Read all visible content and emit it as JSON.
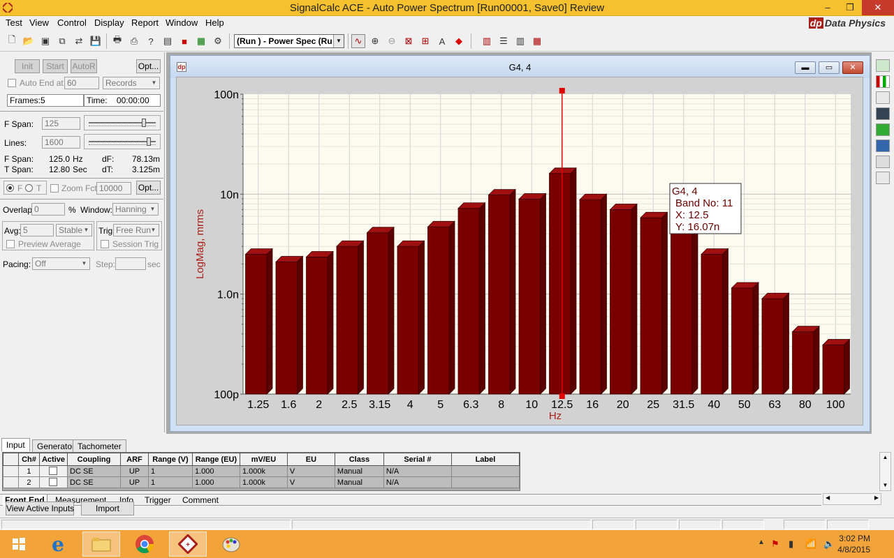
{
  "window": {
    "title": "SignalCalc ACE - Auto Power Spectrum [Run00001, Save0] Review",
    "minimize": "–",
    "restore": "❐",
    "close": "✕"
  },
  "menu": [
    "Test",
    "View",
    "Control",
    "Display",
    "Report",
    "Window",
    "Help"
  ],
  "brand": {
    "logo": "dp",
    "name": "Data Physics"
  },
  "toolbar": {
    "view_select": "(Run ) - Power Spec (Ru",
    "icons": [
      "new-icon",
      "open-icon",
      "save-icon",
      "save-all-icon",
      "export-icon",
      "disk-icon",
      "print-icon",
      "print-setup-icon",
      "help-icon",
      "report-icon",
      "color-icon",
      "layout-icon",
      "settings-icon"
    ],
    "graph_icons": [
      "cursor-icon",
      "zoom-in-icon",
      "zoom-out-icon",
      "autoscale-icon",
      "scale-icon",
      "annotate-icon",
      "marker-icon"
    ],
    "layout_icons": [
      "tile-vertical-icon",
      "tile-horizontal-icon",
      "cascade-icon",
      "arrange-icon"
    ]
  },
  "left_panel": {
    "init": "Init",
    "start": "Start",
    "autor": "AutoR",
    "opt": "Opt...",
    "auto_end_label": "Auto End at:",
    "auto_end_value": "60",
    "auto_end_unit": "Records",
    "frames_label": "Frames:",
    "frames_value": "5",
    "time_label": "Time:",
    "time_value": "00:00:00",
    "fspan_label": "F Span:",
    "fspan_value": "125",
    "fspan_slider": 0.83,
    "lines_label": "Lines:",
    "lines_value": "1600",
    "lines_slider": 0.9,
    "fspan_info_label": "F Span:",
    "fspan_info_value": "125.0",
    "fspan_info_unit": "Hz",
    "df_label": "dF:",
    "df_value": "78.13m",
    "tspan_label": "T Span:",
    "tspan_value": "12.80",
    "tspan_unit": "Sec",
    "dt_label": "dT:",
    "dt_value": "3.125m",
    "radio_f": "F",
    "radio_t": "T",
    "zoom_label": "Zoom Fct:",
    "zoom_value": "10000",
    "opt2": "Opt...",
    "overlap_label": "Overlap:",
    "overlap_value": "0",
    "overlap_unit": "%",
    "window_label": "Window:",
    "window_value": "Hanning",
    "avg_label": "Avg:",
    "avg_value": "5",
    "avg_mode": "Stable",
    "trig_label": "Trig:",
    "trig_value": "Free Run",
    "preview_avg": "Preview Average",
    "session_trig": "Session Trig",
    "pacing_label": "Pacing:",
    "pacing_value": "Off",
    "step_label": "Step:",
    "step_unit": "sec"
  },
  "graph_window": {
    "title": "G4, 4",
    "icon": "dp",
    "minimize": "▬",
    "restore": "▭",
    "close": "✕"
  },
  "chart_data": {
    "type": "bar",
    "title": "",
    "xlabel": "Hz",
    "ylabel": "LogMag, mrms",
    "yscale": "log",
    "ylim": [
      1e-10,
      1e-07
    ],
    "ytick_labels": [
      "100p",
      "1.0n",
      "10n",
      "100n"
    ],
    "ytick_values": [
      1e-10,
      1e-09,
      1e-08,
      1e-07
    ],
    "categories": [
      "1.25",
      "1.6",
      "2",
      "2.5",
      "3.15",
      "4",
      "5",
      "6.3",
      "8",
      "10",
      "12.5",
      "16",
      "20",
      "25",
      "31.5",
      "40",
      "50",
      "63",
      "80",
      "100"
    ],
    "values": [
      2.5e-09,
      2.1e-09,
      2.35e-09,
      3e-09,
      4.1e-09,
      3e-09,
      4.7e-09,
      7.2e-09,
      9.8e-09,
      8.9e-09,
      1.607e-08,
      8.8e-09,
      7e-09,
      5.8e-09,
      7e-09,
      2.5e-09,
      1.15e-09,
      9e-10,
      4.2e-10,
      3.1e-10
    ],
    "bar_color": "#7a0000",
    "background": "#fdfbf0",
    "grid": true,
    "cursor_band": 11,
    "tooltip": {
      "title": "G4, 4",
      "band": "Band No: 11",
      "x": "X: 12.5",
      "y": "Y: 16.07n"
    }
  },
  "bottom": {
    "tabs": [
      "Input",
      "Generator",
      "Tachometer"
    ],
    "columns": [
      "Ch#",
      "Active",
      "Coupling",
      "ARF",
      "Range (V)",
      "Range (EU)",
      "mV/EU",
      "EU",
      "Class",
      "Serial #",
      "Label"
    ],
    "rows": [
      {
        "ch": "1",
        "coupling": "DC SE",
        "arf": "UP",
        "range_v": "1",
        "range_eu": "1.000",
        "mv_eu": "1.000k",
        "eu": "V",
        "class": "Manual",
        "serial": "N/A",
        "label": ""
      },
      {
        "ch": "2",
        "coupling": "DC SE",
        "arf": "UP",
        "range_v": "1",
        "range_eu": "1.000",
        "mv_eu": "1.000k",
        "eu": "V",
        "class": "Manual",
        "serial": "N/A",
        "label": ""
      }
    ],
    "subtabs": [
      "Front End",
      "Measurement",
      "Info",
      "Trigger",
      "Comment"
    ],
    "view_active_inputs": "View Active Inputs",
    "import": "Import"
  },
  "taskbar": {
    "time": "3:02 PM",
    "date": "4/8/2015",
    "apps": [
      "start-icon",
      "internet-explorer-icon",
      "file-explorer-icon",
      "chrome-icon",
      "signalcalc-icon",
      "paint-icon"
    ]
  }
}
